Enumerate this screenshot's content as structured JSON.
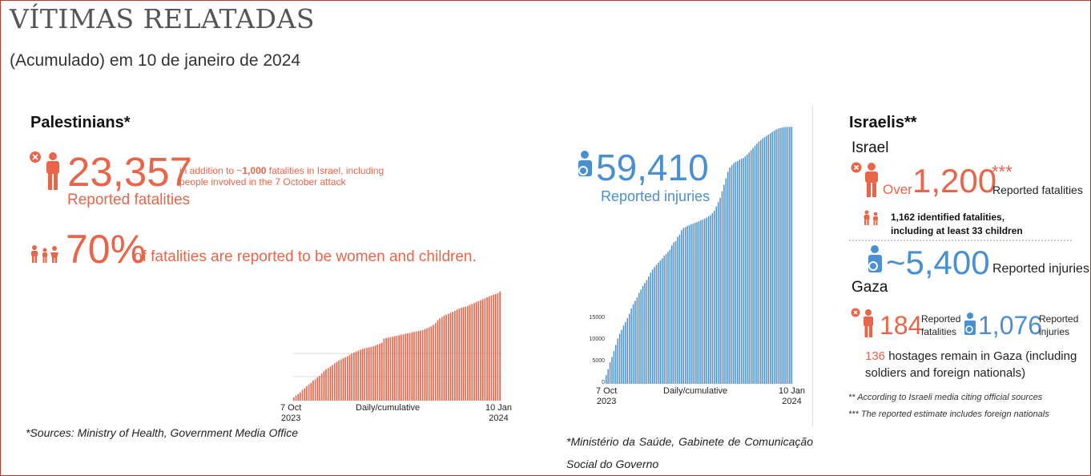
{
  "title": "VÍTIMAS RELATADAS",
  "subtitle": "(Acumulado) em 10 de janeiro de 2024",
  "colors": {
    "red": "#e8654a",
    "blue": "#4a8fd0",
    "divider": "#cccccc"
  },
  "palestinians": {
    "heading": "Palestinians*",
    "fatalities_value": "23,357",
    "fatalities_note_pre": "in addition to ~",
    "fatalities_note_bold": "1,000",
    "fatalities_note_post": " fatalities in Israel, including",
    "fatalities_note_line2": "people involved in the 7 October attack",
    "fatalities_label": "Reported fatalities",
    "share_value": "70%",
    "share_label": "of fatalities are reported to be women and children.",
    "chart_start": "7 Oct\n2023",
    "chart_mid": "Daily/cumulative",
    "chart_end": "10 Jan\n2024",
    "sources": "*Sources: Ministry of Health, Government Media Office"
  },
  "injuries": {
    "value": "59,410",
    "label": "Reported injuries",
    "chart_start": "7 Oct\n2023",
    "chart_mid": "Daily/cumulative",
    "chart_end": "10 Jan\n2024",
    "sources": "*Ministério da Saúde, Gabinete de Comunicação Social do Governo"
  },
  "israelis": {
    "heading": "Israelis**",
    "israel_label": "Israel",
    "over": "Over ",
    "fatalities_value": "1,200",
    "fatalities_stars": "***",
    "fatalities_label": "Reported fatalities",
    "identified_line1": "1,162 identified fatalities,",
    "identified_line2": "including at least 33 children",
    "injuries_value": "~5,400",
    "injuries_label": "Reported injuries",
    "gaza_label": "Gaza",
    "gaza_fatalities_value": "184",
    "gaza_fatalities_label": "Reported\nfatalities",
    "gaza_injuries_value": "1,076",
    "gaza_injuries_label": "Reported\ninjuries",
    "hostages_value": "136",
    "hostages_text": " hostages remain in Gaza (including",
    "hostages_line2": "soldiers and foreign nationals)",
    "footnote1": "** According to Israeli media citing official sources",
    "footnote2": "*** The reported estimate includes foreign nationals"
  },
  "chart_data": [
    {
      "type": "bar",
      "name": "Palestinian fatalities, cumulative",
      "x_start": "7 Oct 2023",
      "x_end": "10 Jan 2024",
      "xlabel": "Daily/cumulative",
      "ylim": [
        0,
        24000
      ],
      "values": [
        700,
        1100,
        1400,
        1800,
        2300,
        2600,
        3100,
        3500,
        3800,
        4300,
        4600,
        5000,
        5300,
        5800,
        6300,
        6700,
        7000,
        7300,
        7600,
        8000,
        8300,
        8600,
        8800,
        9100,
        9300,
        9500,
        9800,
        10100,
        10300,
        10500,
        10700,
        10900,
        11100,
        11200,
        11300,
        11400,
        11500,
        11600,
        11800,
        12000,
        12200,
        12400,
        13300,
        13400,
        13500,
        13600,
        13700,
        13800,
        13900,
        14000,
        14100,
        14200,
        14300,
        14400,
        14500,
        14600,
        14700,
        14800,
        14900,
        15000,
        15100,
        15300,
        15500,
        15700,
        15900,
        16200,
        16600,
        17200,
        17600,
        17900,
        18200,
        18400,
        18600,
        18800,
        19000,
        19200,
        19500,
        19700,
        19900,
        20000,
        20100,
        20300,
        20500,
        20700,
        20900,
        21100,
        21300,
        21500,
        21700,
        21900,
        22100,
        22300,
        22500,
        22700,
        22800,
        23000,
        23357
      ]
    },
    {
      "type": "bar",
      "name": "Palestinian injuries, cumulative",
      "x_start": "7 Oct 2023",
      "x_end": "10 Jan 2024",
      "xlabel": "Daily/cumulative",
      "y_ticks": [
        0,
        5000,
        10000,
        15000
      ],
      "ylim": [
        0,
        60000
      ],
      "values": [
        2000,
        3400,
        5000,
        6200,
        7600,
        9000,
        10500,
        11600,
        12500,
        13500,
        14300,
        15200,
        16200,
        17400,
        18400,
        19200,
        20000,
        21000,
        21800,
        22600,
        23300,
        24000,
        24800,
        25700,
        26400,
        27000,
        27500,
        28000,
        28500,
        29000,
        29600,
        30000,
        30500,
        31000,
        32000,
        32700,
        33000,
        34000,
        34500,
        35500,
        36000,
        36200,
        36500,
        36700,
        36900,
        37000,
        37200,
        37400,
        37600,
        37800,
        38000,
        38200,
        38400,
        38700,
        39000,
        39500,
        40000,
        41000,
        42000,
        43000,
        44500,
        46000,
        47500,
        49000,
        50000,
        50500,
        51000,
        51300,
        51500,
        51800,
        52000,
        52200,
        52600,
        53000,
        53500,
        54000,
        54500,
        55000,
        55500,
        56000,
        56300,
        56700,
        57000,
        57300,
        57600,
        57900,
        58200,
        58500,
        58800,
        59000,
        59100,
        59200,
        59300,
        59350,
        59380,
        59400,
        59410
      ]
    }
  ]
}
